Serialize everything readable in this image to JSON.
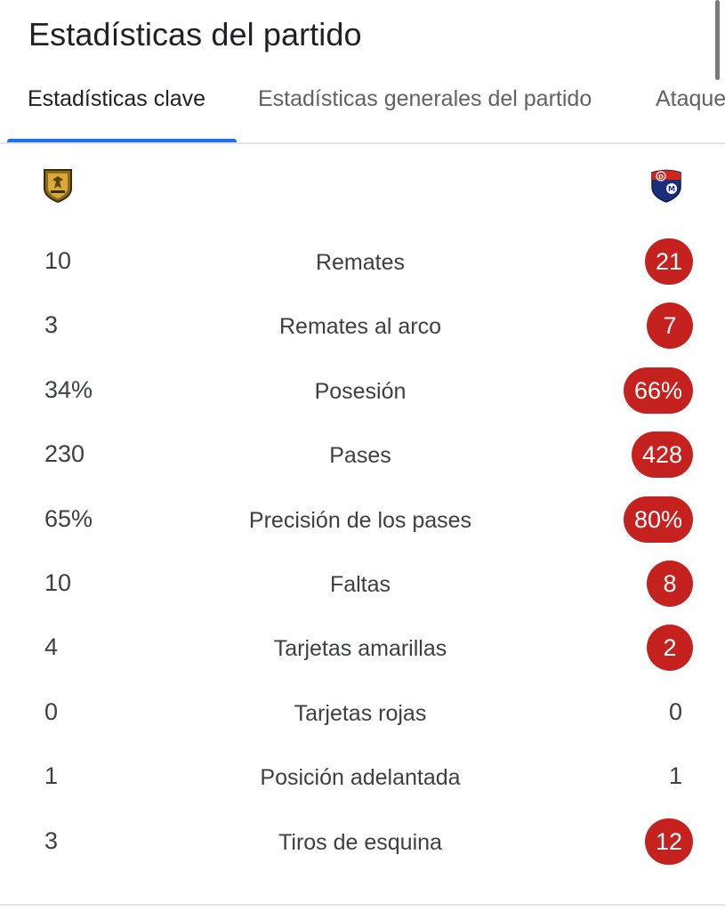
{
  "header": {
    "title": "Estadísticas del partido"
  },
  "tabs": [
    {
      "label": "Estadísticas clave",
      "active": true
    },
    {
      "label": "Estadísticas generales del partido",
      "active": false
    },
    {
      "label": "Ataque",
      "active": false
    }
  ],
  "teams": {
    "home_logo": "rionegro-aguilas-crest-icon",
    "away_logo": "independiente-medellin-crest-icon"
  },
  "colors": {
    "accent_tab": "#1a73e8",
    "highlight_badge": "#c5221f"
  },
  "stats": [
    {
      "home": "10",
      "label": "Remates",
      "away": "21",
      "away_highlight": true
    },
    {
      "home": "3",
      "label": "Remates al arco",
      "away": "7",
      "away_highlight": true
    },
    {
      "home": "34%",
      "label": "Posesión",
      "away": "66%",
      "away_highlight": true
    },
    {
      "home": "230",
      "label": "Pases",
      "away": "428",
      "away_highlight": true
    },
    {
      "home": "65%",
      "label": "Precisión de los pases",
      "away": "80%",
      "away_highlight": true
    },
    {
      "home": "10",
      "label": "Faltas",
      "away": "8",
      "away_highlight": true
    },
    {
      "home": "4",
      "label": "Tarjetas amarillas",
      "away": "2",
      "away_highlight": true
    },
    {
      "home": "0",
      "label": "Tarjetas rojas",
      "away": "0",
      "away_highlight": false
    },
    {
      "home": "1",
      "label": "Posición adelantada",
      "away": "1",
      "away_highlight": false
    },
    {
      "home": "3",
      "label": "Tiros de esquina",
      "away": "12",
      "away_highlight": true
    }
  ]
}
